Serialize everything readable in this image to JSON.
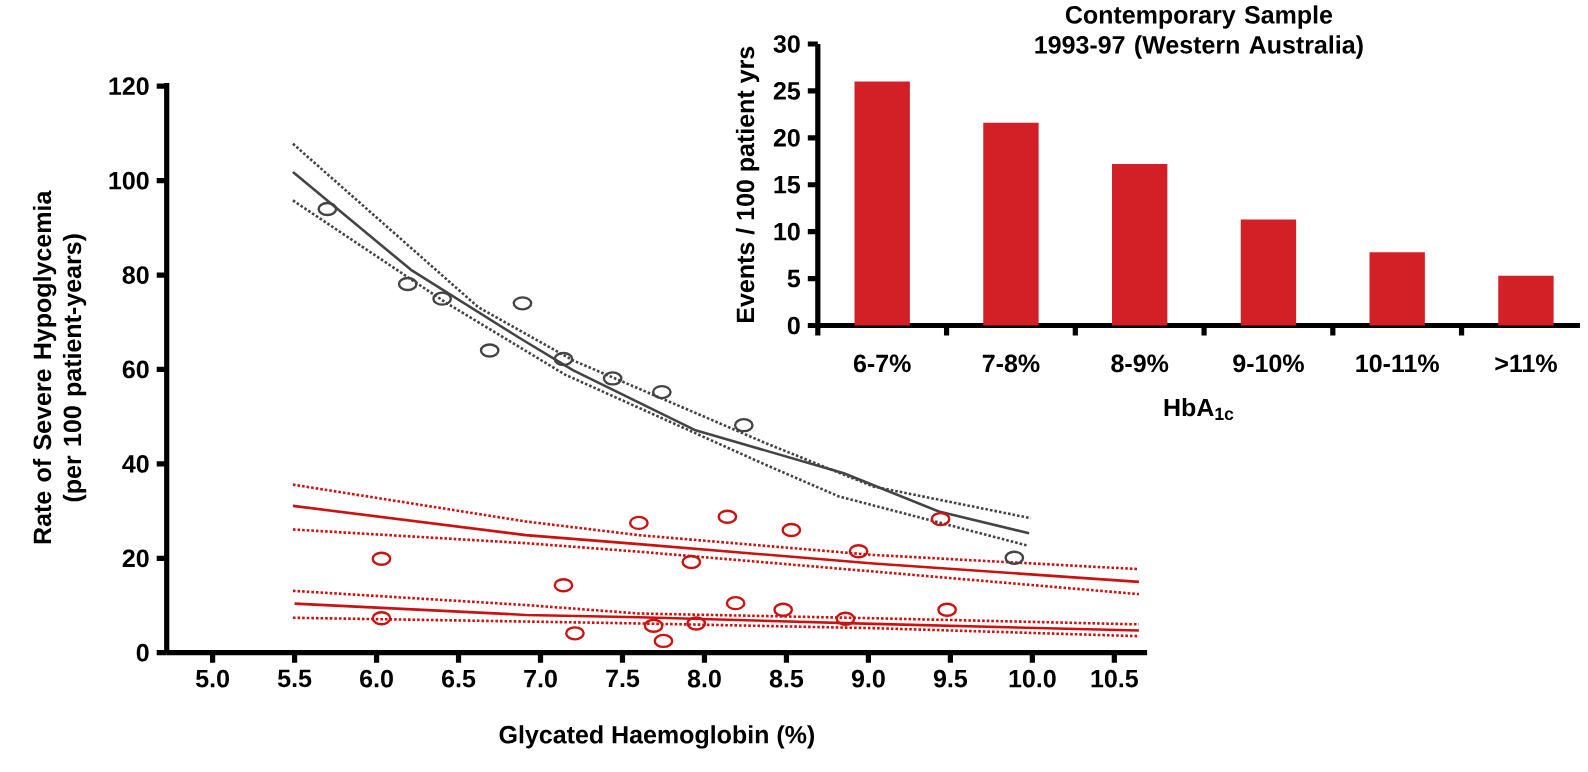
{
  "chart_data": [
    {
      "type": "scatter",
      "xlabel": "Glycated Haemoglobin (%)",
      "ylabel": "Rate of Severe Hypoglycemia (per 100 patient-years)",
      "xlim": [
        4.72,
        10.7
      ],
      "ylim": [
        0,
        120.7
      ],
      "xticks": [
        {
          "value": 5,
          "label": "5.0"
        },
        {
          "value": 5.5,
          "label": "5.5"
        },
        {
          "value": 6,
          "label": "6.0"
        },
        {
          "value": 6.5,
          "label": "6.5"
        },
        {
          "value": 7,
          "label": "7.0"
        },
        {
          "value": 7.5,
          "label": "7.5"
        },
        {
          "value": 8,
          "label": "8.0"
        },
        {
          "value": 8.5,
          "label": "8.5"
        },
        {
          "value": 9,
          "label": "9.0"
        },
        {
          "value": 9.5,
          "label": "9.5"
        },
        {
          "value": 10,
          "label": "10.0"
        },
        {
          "value": 10.5,
          "label": "10.5"
        }
      ],
      "yticks": [
        0,
        20,
        40,
        60,
        80,
        100,
        120
      ],
      "series": [
        {
          "type": "scatter",
          "marker": "circle",
          "color": "#444444",
          "x": [
            5.7,
            6.19,
            6.4,
            6.69,
            6.89,
            7.14,
            7.44,
            7.74,
            8.24,
            9.89
          ],
          "values": [
            94.0,
            78.1,
            75.0,
            64.0,
            74.0,
            62.2,
            58.1,
            55.2,
            48.2,
            20.1
          ]
        },
        {
          "type": "scatter",
          "marker": "circle",
          "color": "#cc1111",
          "x": [
            6.03,
            6.03,
            7.14,
            7.21,
            7.6,
            7.69,
            7.75,
            7.92,
            7.95,
            8.14,
            8.19,
            8.48,
            8.53,
            8.86,
            8.94,
            9.44,
            9.48
          ],
          "values": [
            19.9,
            7.3,
            14.3,
            4.1,
            27.5,
            5.7,
            2.5,
            19.2,
            6.2,
            28.8,
            10.5,
            9.1,
            26.0,
            7.2,
            21.5,
            28.3,
            9.1
          ]
        },
        {
          "type": "line",
          "line_style": "solid",
          "color": "#444444",
          "x": [
            5.49,
            6.21,
            6.88,
            7.2,
            7.94,
            8.85,
            9.43,
            9.98
          ],
          "values": [
            101.8,
            81.1,
            66.5,
            59.8,
            47.2,
            38.0,
            29.9,
            25.3
          ]
        },
        {
          "type": "line",
          "line_style": "dotted",
          "color": "#444444",
          "x": [
            5.49,
            6.62,
            7.2,
            8.38,
            9.03,
            9.99
          ],
          "values": [
            107.8,
            73.2,
            61.9,
            44.3,
            35.2,
            28.5
          ]
        },
        {
          "type": "line",
          "line_style": "dotted",
          "color": "#444444",
          "x": [
            5.49,
            6.43,
            7.15,
            8.38,
            8.82,
            9.97
          ],
          "values": [
            95.8,
            74.0,
            58.9,
            39.7,
            33.1,
            22.7
          ]
        },
        {
          "type": "line",
          "line_style": "solid",
          "color": "#cc1111",
          "x": [
            5.49,
            6.91,
            7.6,
            9.03,
            10.65
          ],
          "values": [
            31.1,
            24.9,
            23.0,
            18.9,
            15.0
          ]
        },
        {
          "type": "line",
          "line_style": "dotted",
          "color": "#cc1111",
          "x": [
            5.49,
            6.91,
            7.6,
            9.03,
            10.65
          ],
          "values": [
            35.6,
            27.8,
            24.9,
            20.7,
            17.7
          ]
        },
        {
          "type": "line",
          "line_style": "dotted",
          "color": "#cc1111",
          "x": [
            5.49,
            6.91,
            7.6,
            9.03,
            10.65
          ],
          "values": [
            26.1,
            23.2,
            21.4,
            17.2,
            12.4
          ]
        },
        {
          "type": "line",
          "line_style": "solid",
          "color": "#cc1111",
          "x": [
            5.5,
            6.91,
            7.6,
            9.03,
            10.65
          ],
          "values": [
            10.4,
            8.0,
            7.5,
            6.1,
            4.7
          ]
        },
        {
          "type": "line",
          "line_style": "dotted",
          "color": "#cc1111",
          "x": [
            5.49,
            6.91,
            7.6,
            9.03,
            10.65
          ],
          "values": [
            13.1,
            10.1,
            8.3,
            7.3,
            6.0
          ]
        },
        {
          "type": "line",
          "line_style": "dotted",
          "color": "#cc1111",
          "x": [
            5.49,
            6.91,
            7.6,
            9.03,
            10.65
          ],
          "values": [
            7.4,
            6.6,
            6.2,
            5.2,
            3.5
          ]
        }
      ]
    },
    {
      "type": "bar",
      "title": "Contemporary Sample 1993-97 (Western Australia)",
      "xlabel": "HbA$_{1c}$",
      "ylabel": "Events / 100 patient yrs",
      "categories": [
        "6-7%",
        "7-8%",
        "8-9%",
        "9-10%",
        "10-11%",
        ">11%"
      ],
      "values": [
        26.0,
        21.6,
        17.2,
        11.3,
        7.8,
        5.3
      ],
      "color": "#d32027",
      "ylim": [
        0,
        30
      ],
      "yticks": [
        0,
        5,
        10,
        15,
        20,
        25,
        30
      ]
    }
  ]
}
